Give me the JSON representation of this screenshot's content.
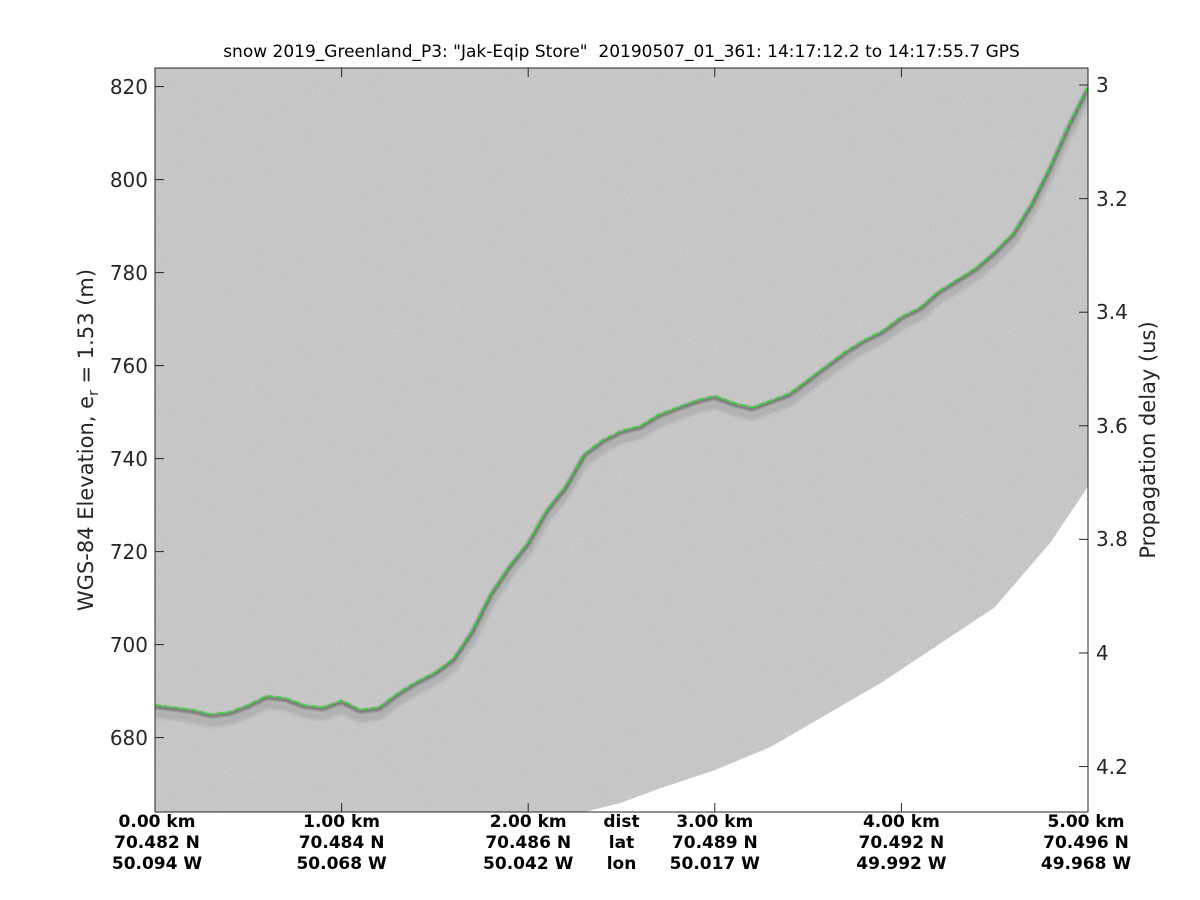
{
  "chart_data": {
    "type": "line",
    "title": "snow 2019_Greenland_P3: \"Jak-Eqip Store\"  20190507_01_361: 14:17:12.2 to 14:17:55.7 GPS",
    "ylabel_main": "WGS-84 Elevation, e",
    "ylabel_sub": "r",
    "ylabel_tail": " = 1.53 (m)",
    "y2label": "Propagation delay (us)",
    "ylim": [
      664,
      824
    ],
    "xlim": [
      0,
      5
    ],
    "y_ticks": [
      "680",
      "700",
      "720",
      "740",
      "760",
      "780",
      "800",
      "820"
    ],
    "y2_ticks": [
      "3",
      "3.2",
      "3.4",
      "3.6",
      "3.8",
      "4",
      "4.2"
    ],
    "x_columns": [
      {
        "dist": "0.00 km",
        "lat": "70.482 N",
        "lon": "50.094 W"
      },
      {
        "dist": "1.00 km",
        "lat": "70.484 N",
        "lon": "50.068 W"
      },
      {
        "dist": "2.00 km",
        "lat": "70.486 N",
        "lon": "50.042 W"
      },
      {
        "dist": "dist",
        "lat": "lat",
        "lon": "lon"
      },
      {
        "dist": "3.00 km",
        "lat": "70.489 N",
        "lon": "50.017 W"
      },
      {
        "dist": "4.00 km",
        "lat": "70.492 N",
        "lon": "49.992 W"
      },
      {
        "dist": "5.00 km",
        "lat": "70.496 N",
        "lon": "49.968 W"
      }
    ],
    "surface_track": {
      "x": [
        0,
        0.1,
        0.2,
        0.3,
        0.4,
        0.5,
        0.6,
        0.7,
        0.8,
        0.9,
        1.0,
        1.1,
        1.2,
        1.3,
        1.4,
        1.5,
        1.6,
        1.7,
        1.8,
        1.9,
        2.0,
        2.1,
        2.2,
        2.3,
        2.4,
        2.5,
        2.6,
        2.7,
        2.8,
        2.9,
        3.0,
        3.1,
        3.2,
        3.3,
        3.4,
        3.5,
        3.6,
        3.7,
        3.8,
        3.9,
        4.0,
        4.1,
        4.2,
        4.3,
        4.4,
        4.5,
        4.6,
        4.7,
        4.8,
        4.9,
        5.0
      ],
      "y": [
        687,
        686.5,
        686,
        685,
        685.5,
        687,
        689,
        688.5,
        687,
        686.5,
        688,
        686,
        686.5,
        689.5,
        692,
        694,
        697,
        703,
        711,
        717,
        722,
        729,
        734,
        741,
        744,
        746,
        747,
        749.5,
        751,
        752.5,
        753.5,
        752,
        751,
        752.5,
        754,
        757,
        760,
        763,
        765.5,
        767.5,
        770.5,
        772.5,
        776,
        778.5,
        781,
        784.5,
        788.5,
        795,
        803,
        812,
        820
      ],
      "color": "#22dd22",
      "style": "dashed"
    },
    "data_boundary": {
      "x": [
        2.3,
        2.5,
        2.7,
        3.0,
        3.3,
        3.6,
        3.9,
        4.2,
        4.5,
        4.8,
        5.0
      ],
      "y": [
        664,
        666,
        669,
        673,
        678,
        685,
        692,
        700,
        708,
        722,
        734
      ]
    },
    "y2_range_us": [
      2.97,
      4.28
    ],
    "background": "radar echogram (grayscale)",
    "colors": {
      "echogram": "#c9c9c9",
      "layer": "#1a1a1a",
      "track": "#22dd22"
    }
  }
}
